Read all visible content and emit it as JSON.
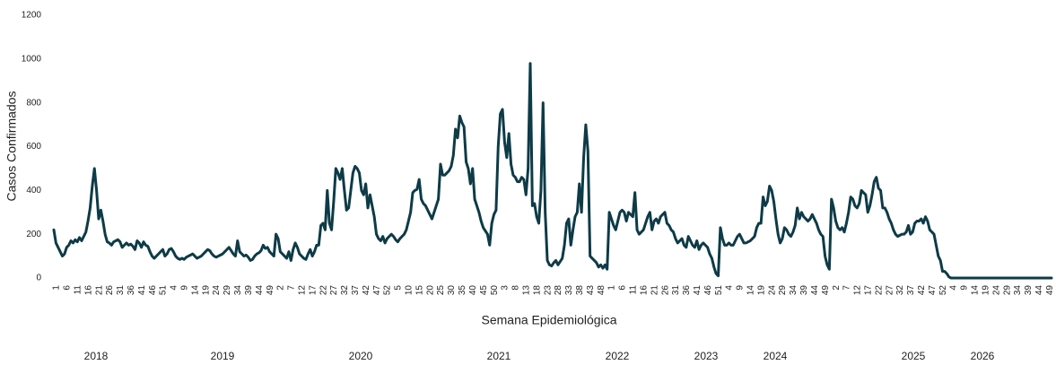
{
  "chart_data": {
    "type": "line",
    "y_label": "Casos Confirmados",
    "x_label": "Semana Epidemiológica",
    "year_labels": [
      "2018",
      "2019",
      "2020",
      "2021",
      "2022",
      "2023",
      "2024",
      "2025",
      "2026"
    ],
    "ylim": [
      0,
      1200
    ],
    "yticks": [
      0,
      200,
      400,
      600,
      800,
      1000,
      1200
    ],
    "categories": [
      1,
      null,
      null,
      null,
      null,
      6,
      null,
      null,
      null,
      null,
      11,
      null,
      null,
      null,
      null,
      16,
      null,
      null,
      null,
      null,
      21,
      null,
      null,
      null,
      null,
      26,
      null,
      null,
      null,
      null,
      31,
      null,
      null,
      null,
      null,
      36,
      null,
      null,
      null,
      null,
      41,
      null,
      null,
      null,
      null,
      46,
      null,
      null,
      null,
      null,
      51,
      null,
      null,
      null,
      null,
      4,
      null,
      null,
      null,
      null,
      9,
      null,
      null,
      null,
      null,
      14,
      null,
      null,
      null,
      null,
      19,
      null,
      null,
      null,
      null,
      24,
      null,
      null,
      null,
      null,
      29,
      null,
      null,
      null,
      null,
      34,
      null,
      null,
      null,
      null,
      39,
      null,
      null,
      null,
      null,
      44,
      null,
      null,
      null,
      null,
      49,
      null,
      null,
      null,
      null,
      2,
      null,
      null,
      null,
      null,
      7,
      null,
      null,
      null,
      null,
      12,
      null,
      null,
      null,
      null,
      17,
      null,
      null,
      null,
      null,
      22,
      null,
      null,
      null,
      null,
      27,
      null,
      null,
      null,
      null,
      32,
      null,
      null,
      null,
      null,
      37,
      null,
      null,
      null,
      null,
      42,
      null,
      null,
      null,
      null,
      47,
      null,
      null,
      null,
      null,
      52,
      null,
      null,
      null,
      null,
      5,
      null,
      null,
      null,
      null,
      10,
      null,
      null,
      null,
      null,
      15,
      null,
      null,
      null,
      null,
      20,
      null,
      null,
      null,
      null,
      25,
      null,
      null,
      null,
      null,
      30,
      null,
      null,
      null,
      null,
      35,
      null,
      null,
      null,
      null,
      40,
      null,
      null,
      null,
      null,
      45,
      null,
      null,
      null,
      null,
      50,
      null,
      null,
      null,
      null,
      3,
      null,
      null,
      null,
      null,
      8,
      null,
      null,
      null,
      null,
      13,
      null,
      null,
      null,
      null,
      18,
      null,
      null,
      null,
      null,
      23,
      null,
      null,
      null,
      null,
      28,
      null,
      null,
      null,
      null,
      33,
      null,
      null,
      null,
      null,
      38,
      null,
      null,
      null,
      null,
      43,
      null,
      null,
      null,
      null,
      48,
      null,
      null,
      null,
      null,
      1,
      null,
      null,
      null,
      null,
      6,
      null,
      null,
      null,
      null,
      11,
      null,
      null,
      null,
      null,
      16,
      null,
      null,
      null,
      null,
      21,
      null,
      null,
      null,
      null,
      26,
      null,
      null,
      null,
      null,
      31,
      null,
      null,
      null,
      null,
      36,
      null,
      null,
      null,
      null,
      41,
      null,
      null,
      null,
      null,
      46,
      null,
      null,
      null,
      null,
      51,
      null,
      null,
      null,
      null,
      4,
      null,
      null,
      null,
      null,
      9,
      null,
      null,
      null,
      null,
      14,
      null,
      null,
      null,
      null,
      19,
      null,
      null,
      null,
      null,
      24,
      null,
      null,
      null,
      null,
      29,
      null,
      null,
      null,
      null,
      34,
      null,
      null,
      null,
      null,
      39,
      null,
      null,
      null,
      null,
      44,
      null,
      null,
      null,
      null,
      49,
      null,
      null,
      null,
      null,
      2,
      null,
      null,
      null,
      null,
      7,
      null,
      null,
      null,
      null,
      12,
      null,
      null,
      null,
      null,
      17,
      null,
      null,
      null,
      null,
      22,
      null,
      null,
      null,
      null,
      27,
      null,
      null,
      null,
      null,
      32,
      null,
      null,
      null,
      null,
      37,
      null,
      null,
      null,
      null,
      42,
      null,
      null,
      null,
      null,
      47,
      null,
      null,
      null,
      null,
      52,
      null,
      null,
      null,
      null,
      4,
      null,
      null,
      null,
      null,
      9,
      null,
      null,
      null,
      null,
      14,
      null,
      null,
      null,
      null,
      19,
      null,
      null,
      null,
      null,
      24,
      null,
      null,
      null,
      null,
      29,
      null,
      null,
      null,
      null,
      34,
      null,
      null,
      null,
      null,
      39,
      null,
      null,
      null,
      null,
      44,
      null,
      null,
      null,
      null,
      49,
      null,
      null
    ],
    "series": [
      {
        "color": "#0d3b47",
        "values": [
          220,
          160,
          140,
          120,
          100,
          110,
          140,
          150,
          170,
          160,
          175,
          165,
          185,
          170,
          190,
          210,
          260,
          320,
          420,
          500,
          400,
          270,
          310,
          260,
          200,
          165,
          160,
          150,
          165,
          170,
          175,
          165,
          140,
          150,
          160,
          150,
          155,
          145,
          130,
          170,
          160,
          140,
          165,
          150,
          145,
          120,
          100,
          90,
          100,
          110,
          120,
          130,
          100,
          110,
          130,
          135,
          120,
          100,
          90,
          85,
          90,
          85,
          95,
          100,
          105,
          110,
          100,
          90,
          95,
          100,
          110,
          120,
          130,
          125,
          110,
          100,
          95,
          100,
          105,
          110,
          120,
          130,
          140,
          125,
          110,
          100,
          170,
          120,
          110,
          100,
          105,
          95,
          80,
          85,
          100,
          110,
          115,
          125,
          150,
          135,
          140,
          120,
          110,
          100,
          200,
          180,
          120,
          110,
          100,
          90,
          120,
          80,
          130,
          160,
          140,
          110,
          100,
          90,
          85,
          110,
          130,
          100,
          120,
          150,
          150,
          240,
          250,
          220,
          400,
          250,
          220,
          350,
          500,
          480,
          450,
          500,
          400,
          310,
          320,
          400,
          480,
          510,
          500,
          480,
          400,
          380,
          430,
          320,
          380,
          330,
          280,
          200,
          180,
          170,
          190,
          160,
          180,
          190,
          200,
          190,
          175,
          165,
          180,
          190,
          200,
          220,
          260,
          300,
          390,
          400,
          405,
          450,
          360,
          340,
          330,
          310,
          290,
          270,
          300,
          330,
          360,
          520,
          470,
          470,
          480,
          490,
          510,
          560,
          680,
          640,
          740,
          710,
          690,
          530,
          500,
          430,
          500,
          360,
          330,
          300,
          260,
          230,
          215,
          200,
          150,
          250,
          290,
          310,
          600,
          750,
          770,
          620,
          550,
          660,
          520,
          470,
          460,
          440,
          440,
          460,
          450,
          380,
          500,
          980,
          330,
          340,
          280,
          250,
          400,
          800,
          300,
          80,
          60,
          55,
          70,
          80,
          60,
          75,
          90,
          150,
          250,
          270,
          150,
          220,
          280,
          300,
          430,
          300,
          550,
          700,
          580,
          100,
          90,
          80,
          70,
          50,
          60,
          45,
          60,
          40,
          300,
          270,
          240,
          220,
          260,
          300,
          310,
          300,
          260,
          300,
          290,
          280,
          390,
          220,
          200,
          210,
          220,
          250,
          280,
          300,
          220,
          260,
          270,
          250,
          280,
          290,
          300,
          250,
          240,
          220,
          210,
          180,
          160,
          170,
          180,
          150,
          140,
          190,
          170,
          150,
          140,
          170,
          130,
          150,
          160,
          150,
          140,
          110,
          90,
          50,
          20,
          10,
          230,
          180,
          150,
          150,
          160,
          150,
          150,
          170,
          190,
          200,
          180,
          160,
          160,
          165,
          170,
          180,
          190,
          230,
          250,
          250,
          370,
          330,
          350,
          420,
          400,
          350,
          270,
          200,
          160,
          180,
          230,
          220,
          200,
          190,
          210,
          240,
          320,
          270,
          300,
          280,
          270,
          260,
          270,
          290,
          270,
          250,
          220,
          200,
          190,
          100,
          60,
          40,
          360,
          320,
          260,
          230,
          220,
          230,
          210,
          250,
          300,
          370,
          360,
          330,
          320,
          340,
          400,
          390,
          380,
          300,
          330,
          380,
          440,
          460,
          410,
          400,
          320,
          320,
          300,
          270,
          250,
          220,
          200,
          190,
          195,
          200,
          200,
          210,
          240,
          200,
          210,
          250,
          260,
          260,
          270,
          250,
          280,
          260,
          220,
          210,
          200,
          150,
          100,
          80,
          30,
          30,
          20,
          5,
          0,
          0,
          0,
          0,
          0,
          0,
          0,
          0,
          0,
          0,
          0,
          0,
          0,
          0,
          0,
          0,
          0,
          0,
          0,
          0,
          0,
          0,
          0,
          0,
          0,
          0,
          0,
          0,
          0,
          0,
          0,
          0,
          0,
          0,
          0,
          0,
          0,
          0,
          0,
          0,
          0,
          0,
          0,
          0,
          0,
          0,
          0,
          0
        ]
      }
    ]
  }
}
